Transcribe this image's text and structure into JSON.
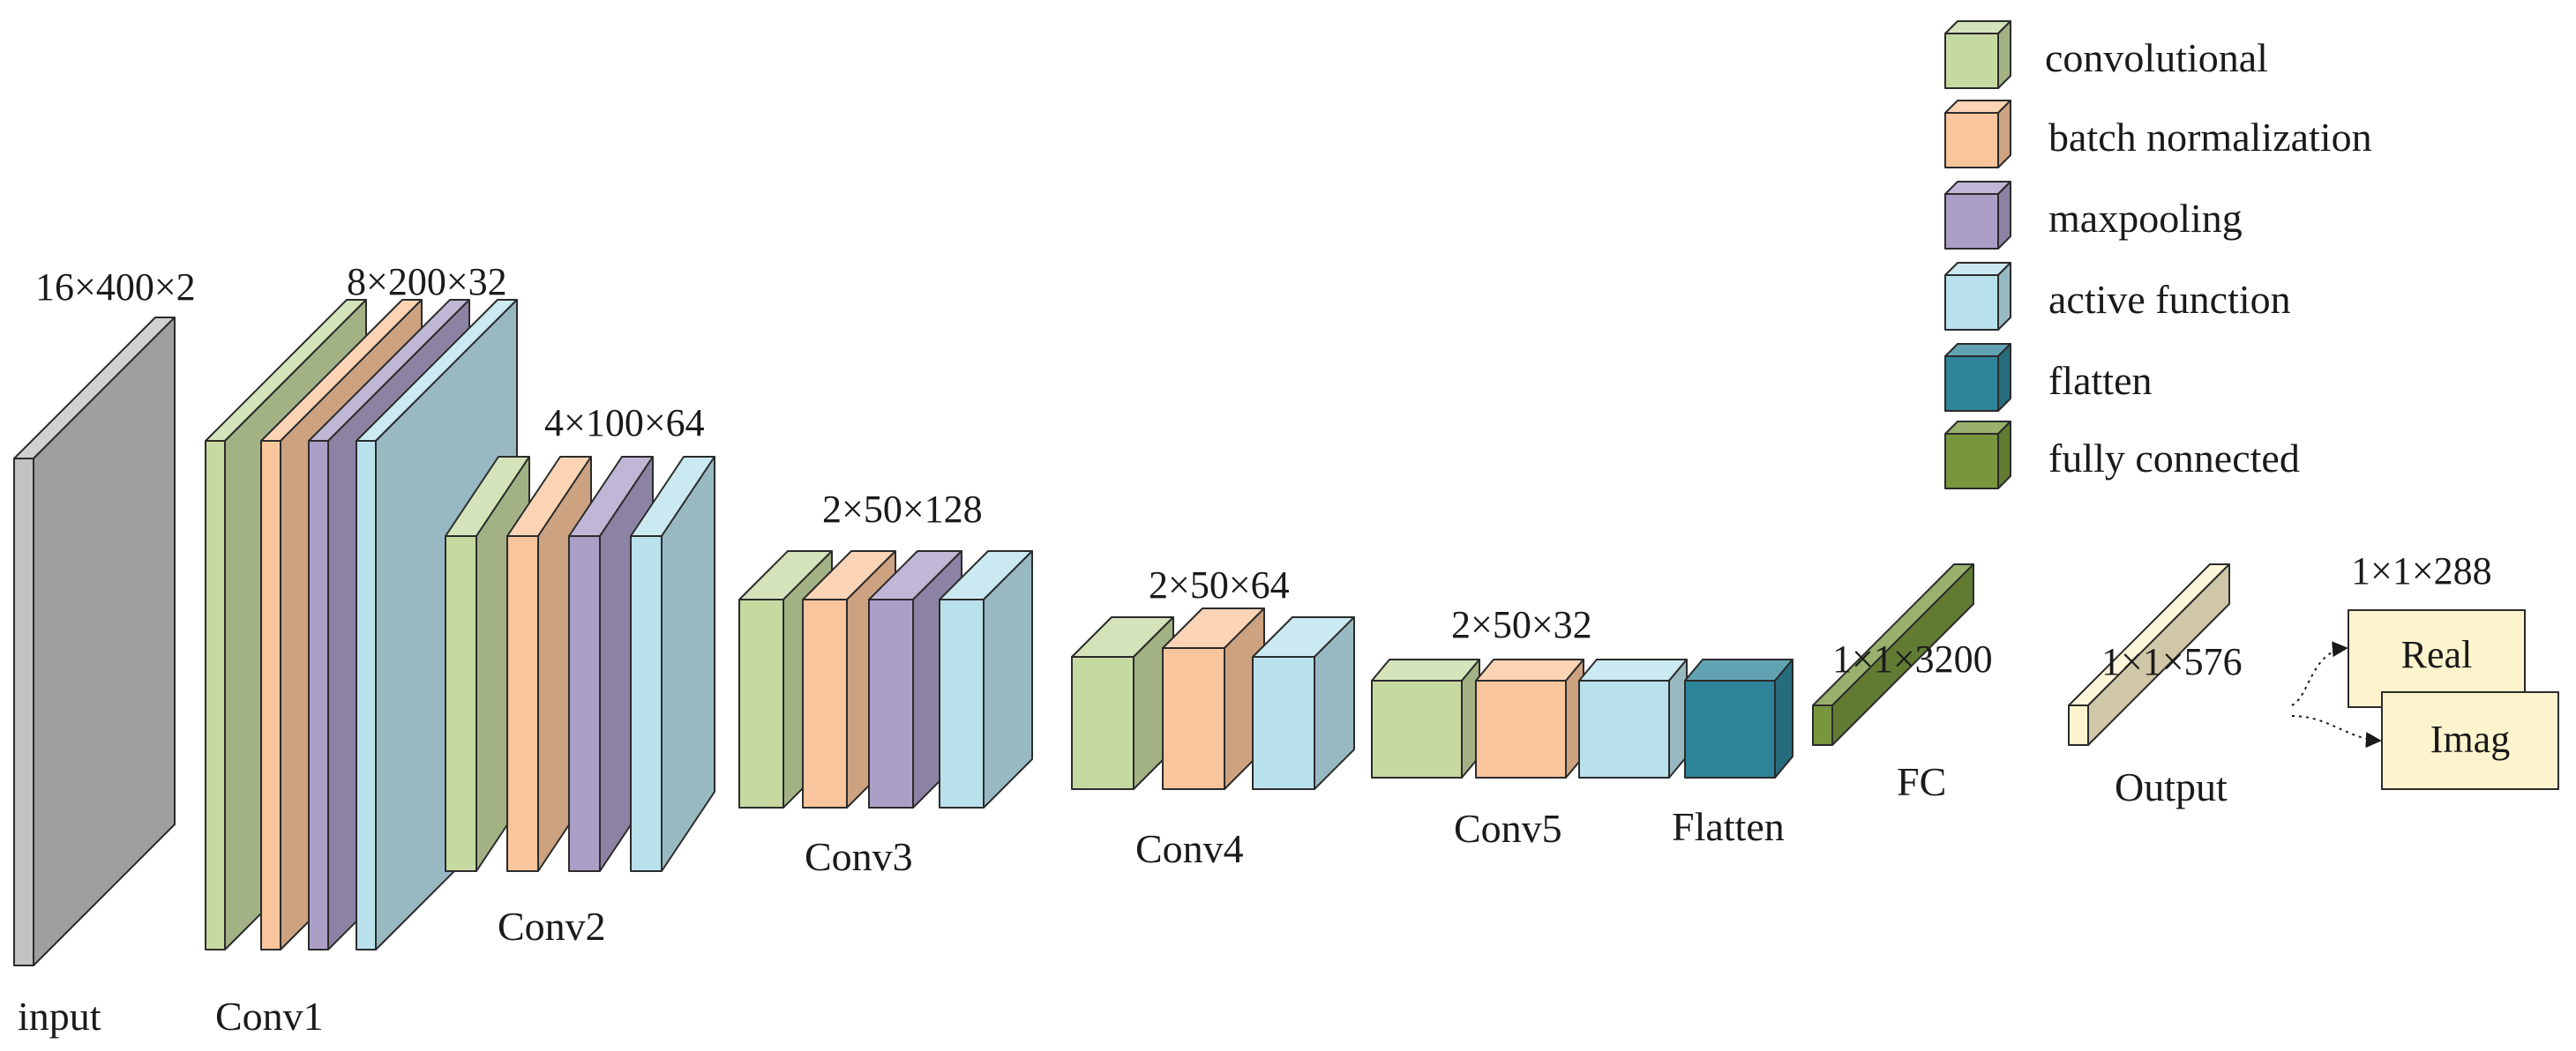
{
  "colors": {
    "input": "#c2c2c2",
    "convolutional": "#c6d9a1",
    "batch_normalization": "#f9c59c",
    "maxpooling": "#ab9fc8",
    "active_function": "#b9e1ec",
    "flatten": "#2e8499",
    "fully_connected": "#77963d",
    "output": "#fdf3cd",
    "outline": "#2b2b2b"
  },
  "legend": [
    {
      "key": "convolutional",
      "label": "convolutional"
    },
    {
      "key": "batch_normalization",
      "label": "batch normalization"
    },
    {
      "key": "maxpooling",
      "label": "maxpooling"
    },
    {
      "key": "active_function",
      "label": "active function"
    },
    {
      "key": "flatten",
      "label": "flatten"
    },
    {
      "key": "fully_connected",
      "label": "fully connected"
    }
  ],
  "stages": {
    "input": {
      "label": "input",
      "dims": "16×400×2"
    },
    "conv1": {
      "label": "Conv1",
      "dims": "8×200×32"
    },
    "conv2": {
      "label": "Conv2",
      "dims": "4×100×64"
    },
    "conv3": {
      "label": "Conv3",
      "dims": "2×50×128"
    },
    "conv4": {
      "label": "Conv4",
      "dims": "2×50×64"
    },
    "conv5": {
      "label": "Conv5",
      "dims": "2×50×32"
    },
    "flatten": {
      "label": "Flatten"
    },
    "fc": {
      "label": "FC",
      "dims": "1×1×3200"
    },
    "output": {
      "label": "Output",
      "dims": "1×1×576"
    },
    "split": {
      "dims": "1×1×288",
      "real": "Real",
      "imag": "Imag"
    }
  }
}
